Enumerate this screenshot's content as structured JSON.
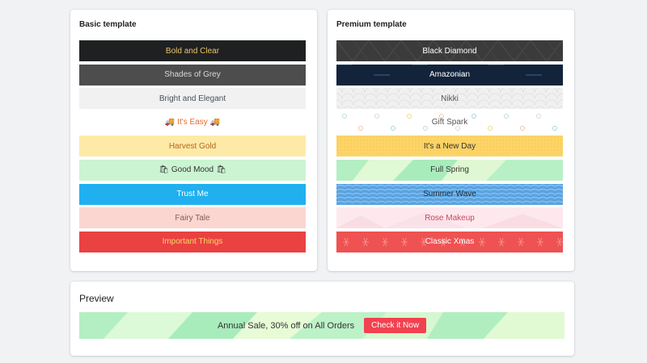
{
  "basic": {
    "title": "Basic template",
    "items": [
      {
        "label": "Bold and Clear",
        "bg": "#1f2021",
        "color": "#e8c46a"
      },
      {
        "label": "Shades of Grey",
        "bg": "#4d4d4d",
        "color": "#d9d9d9"
      },
      {
        "label": "Bright and Elegant",
        "bg": "#f1f1f1",
        "color": "#454f5b"
      },
      {
        "label": "It's Easy",
        "bg": "#ffffff",
        "color": "#e46a2e",
        "emoji": "🚚"
      },
      {
        "label": "Harvest Gold",
        "bg": "#fdeaa7",
        "color": "#b5651d"
      },
      {
        "label": "Good Mood",
        "bg": "#cbf4d2",
        "color": "#333333",
        "emoji": "🛍"
      },
      {
        "label": "Trust Me",
        "bg": "#20b0f0",
        "color": "#ffffff"
      },
      {
        "label": "Fairy Tale",
        "bg": "#fbd6d1",
        "color": "#8a5a55"
      },
      {
        "label": "Important Things",
        "bg": "#ea4141",
        "color": "#f6da6a"
      }
    ]
  },
  "premium": {
    "title": "Premium template",
    "items": [
      {
        "label": "Black Diamond",
        "bg": "#3b3b3b",
        "color": "#ffffff",
        "pattern": "diamond"
      },
      {
        "label": "Amazonian",
        "bg": "#12233a",
        "color": "#ffffff",
        "pattern": "stars"
      },
      {
        "label": "Nikki",
        "bg": "#f0f0f0",
        "color": "#555555",
        "pattern": "waves-light"
      },
      {
        "label": "Gift Spark",
        "bg": "#ffffff",
        "color": "#555555",
        "pattern": "confetti"
      },
      {
        "label": "It's a New Day",
        "bg": "#fcd467",
        "color": "#333333",
        "pattern": "dots"
      },
      {
        "label": "Full Spring",
        "bg": "#c8f5d2",
        "color": "#333333",
        "pattern": "poly"
      },
      {
        "label": "Summer Wave",
        "bg": "#5aa3e0",
        "color": "#1d2b3a",
        "pattern": "waves"
      },
      {
        "label": "Rose Makeup",
        "bg": "#fde8ee",
        "color": "#d0455f",
        "pattern": "rose"
      },
      {
        "label": "Classic Xmas",
        "bg": "#ee5252",
        "color": "#ffffff",
        "pattern": "xmas"
      }
    ]
  },
  "preview": {
    "title": "Preview",
    "message": "Annual Sale, 30% off on All Orders",
    "button_label": "Check it Now"
  }
}
